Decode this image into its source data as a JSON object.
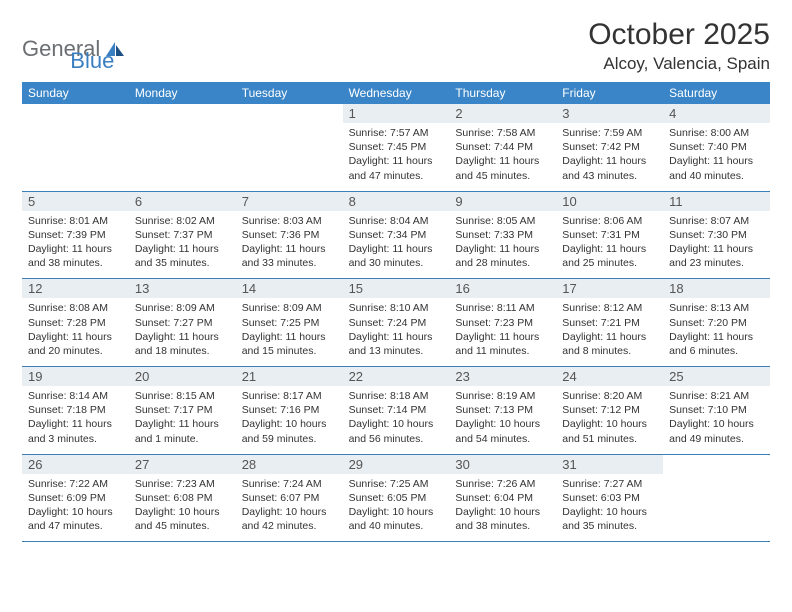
{
  "logo": {
    "text1": "General",
    "text2": "Blue"
  },
  "title": "October 2025",
  "location": "Alcoy, Valencia, Spain",
  "colors": {
    "header_bg": "#3a85c7",
    "header_text": "#ffffff",
    "daynum_bg": "#e9eef2",
    "border": "#3a7fb7",
    "logo_gray": "#6b6f73",
    "logo_blue": "#3a7fc1",
    "body_text": "#333333"
  },
  "dow": [
    "Sunday",
    "Monday",
    "Tuesday",
    "Wednesday",
    "Thursday",
    "Friday",
    "Saturday"
  ],
  "weeks": [
    [
      {
        "n": "",
        "sr": "",
        "ss": "",
        "dl": ""
      },
      {
        "n": "",
        "sr": "",
        "ss": "",
        "dl": ""
      },
      {
        "n": "",
        "sr": "",
        "ss": "",
        "dl": ""
      },
      {
        "n": "1",
        "sr": "Sunrise: 7:57 AM",
        "ss": "Sunset: 7:45 PM",
        "dl": "Daylight: 11 hours and 47 minutes."
      },
      {
        "n": "2",
        "sr": "Sunrise: 7:58 AM",
        "ss": "Sunset: 7:44 PM",
        "dl": "Daylight: 11 hours and 45 minutes."
      },
      {
        "n": "3",
        "sr": "Sunrise: 7:59 AM",
        "ss": "Sunset: 7:42 PM",
        "dl": "Daylight: 11 hours and 43 minutes."
      },
      {
        "n": "4",
        "sr": "Sunrise: 8:00 AM",
        "ss": "Sunset: 7:40 PM",
        "dl": "Daylight: 11 hours and 40 minutes."
      }
    ],
    [
      {
        "n": "5",
        "sr": "Sunrise: 8:01 AM",
        "ss": "Sunset: 7:39 PM",
        "dl": "Daylight: 11 hours and 38 minutes."
      },
      {
        "n": "6",
        "sr": "Sunrise: 8:02 AM",
        "ss": "Sunset: 7:37 PM",
        "dl": "Daylight: 11 hours and 35 minutes."
      },
      {
        "n": "7",
        "sr": "Sunrise: 8:03 AM",
        "ss": "Sunset: 7:36 PM",
        "dl": "Daylight: 11 hours and 33 minutes."
      },
      {
        "n": "8",
        "sr": "Sunrise: 8:04 AM",
        "ss": "Sunset: 7:34 PM",
        "dl": "Daylight: 11 hours and 30 minutes."
      },
      {
        "n": "9",
        "sr": "Sunrise: 8:05 AM",
        "ss": "Sunset: 7:33 PM",
        "dl": "Daylight: 11 hours and 28 minutes."
      },
      {
        "n": "10",
        "sr": "Sunrise: 8:06 AM",
        "ss": "Sunset: 7:31 PM",
        "dl": "Daylight: 11 hours and 25 minutes."
      },
      {
        "n": "11",
        "sr": "Sunrise: 8:07 AM",
        "ss": "Sunset: 7:30 PM",
        "dl": "Daylight: 11 hours and 23 minutes."
      }
    ],
    [
      {
        "n": "12",
        "sr": "Sunrise: 8:08 AM",
        "ss": "Sunset: 7:28 PM",
        "dl": "Daylight: 11 hours and 20 minutes."
      },
      {
        "n": "13",
        "sr": "Sunrise: 8:09 AM",
        "ss": "Sunset: 7:27 PM",
        "dl": "Daylight: 11 hours and 18 minutes."
      },
      {
        "n": "14",
        "sr": "Sunrise: 8:09 AM",
        "ss": "Sunset: 7:25 PM",
        "dl": "Daylight: 11 hours and 15 minutes."
      },
      {
        "n": "15",
        "sr": "Sunrise: 8:10 AM",
        "ss": "Sunset: 7:24 PM",
        "dl": "Daylight: 11 hours and 13 minutes."
      },
      {
        "n": "16",
        "sr": "Sunrise: 8:11 AM",
        "ss": "Sunset: 7:23 PM",
        "dl": "Daylight: 11 hours and 11 minutes."
      },
      {
        "n": "17",
        "sr": "Sunrise: 8:12 AM",
        "ss": "Sunset: 7:21 PM",
        "dl": "Daylight: 11 hours and 8 minutes."
      },
      {
        "n": "18",
        "sr": "Sunrise: 8:13 AM",
        "ss": "Sunset: 7:20 PM",
        "dl": "Daylight: 11 hours and 6 minutes."
      }
    ],
    [
      {
        "n": "19",
        "sr": "Sunrise: 8:14 AM",
        "ss": "Sunset: 7:18 PM",
        "dl": "Daylight: 11 hours and 3 minutes."
      },
      {
        "n": "20",
        "sr": "Sunrise: 8:15 AM",
        "ss": "Sunset: 7:17 PM",
        "dl": "Daylight: 11 hours and 1 minute."
      },
      {
        "n": "21",
        "sr": "Sunrise: 8:17 AM",
        "ss": "Sunset: 7:16 PM",
        "dl": "Daylight: 10 hours and 59 minutes."
      },
      {
        "n": "22",
        "sr": "Sunrise: 8:18 AM",
        "ss": "Sunset: 7:14 PM",
        "dl": "Daylight: 10 hours and 56 minutes."
      },
      {
        "n": "23",
        "sr": "Sunrise: 8:19 AM",
        "ss": "Sunset: 7:13 PM",
        "dl": "Daylight: 10 hours and 54 minutes."
      },
      {
        "n": "24",
        "sr": "Sunrise: 8:20 AM",
        "ss": "Sunset: 7:12 PM",
        "dl": "Daylight: 10 hours and 51 minutes."
      },
      {
        "n": "25",
        "sr": "Sunrise: 8:21 AM",
        "ss": "Sunset: 7:10 PM",
        "dl": "Daylight: 10 hours and 49 minutes."
      }
    ],
    [
      {
        "n": "26",
        "sr": "Sunrise: 7:22 AM",
        "ss": "Sunset: 6:09 PM",
        "dl": "Daylight: 10 hours and 47 minutes."
      },
      {
        "n": "27",
        "sr": "Sunrise: 7:23 AM",
        "ss": "Sunset: 6:08 PM",
        "dl": "Daylight: 10 hours and 45 minutes."
      },
      {
        "n": "28",
        "sr": "Sunrise: 7:24 AM",
        "ss": "Sunset: 6:07 PM",
        "dl": "Daylight: 10 hours and 42 minutes."
      },
      {
        "n": "29",
        "sr": "Sunrise: 7:25 AM",
        "ss": "Sunset: 6:05 PM",
        "dl": "Daylight: 10 hours and 40 minutes."
      },
      {
        "n": "30",
        "sr": "Sunrise: 7:26 AM",
        "ss": "Sunset: 6:04 PM",
        "dl": "Daylight: 10 hours and 38 minutes."
      },
      {
        "n": "31",
        "sr": "Sunrise: 7:27 AM",
        "ss": "Sunset: 6:03 PM",
        "dl": "Daylight: 10 hours and 35 minutes."
      },
      {
        "n": "",
        "sr": "",
        "ss": "",
        "dl": ""
      }
    ]
  ]
}
